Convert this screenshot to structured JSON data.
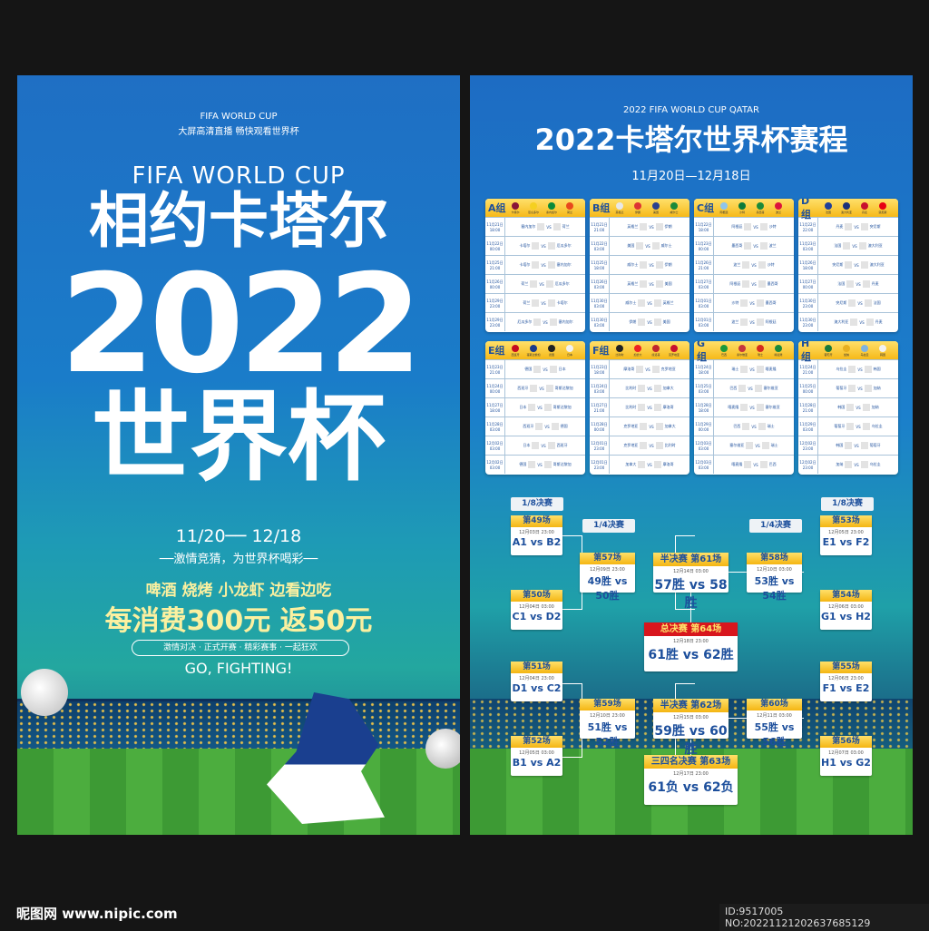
{
  "left_poster": {
    "top_title": "FIFA WORLD CUP",
    "top_subtitle": "大屏高清直播 畅快观看世界杯",
    "fifa": "FIFA WORLD CUP",
    "headline1": "相约卡塔尔",
    "year": "2022",
    "headline2": "世界杯",
    "dates": "11/20── 12/18",
    "tagline": "──激情竞猜，为世界杯喝彩──",
    "food": "啤酒 烧烤 小龙虾 边看边吃",
    "promo": "每消费300元 返50元",
    "pill": "激情对决 · 正式开赛 · 精彩赛事 · 一起狂欢",
    "slogan": "GO, FIGHTING!"
  },
  "right_poster": {
    "subtitle": "2022 FIFA WORLD CUP QATAR",
    "title": "2022卡塔尔世界杯赛程",
    "dates": "11月20日—12月18日",
    "vs": "VS",
    "groups": [
      {
        "name": "A组",
        "teams": [
          "卡塔尔",
          "厄瓜多尔",
          "塞内加尔",
          "荷兰"
        ],
        "colors": [
          "#8a1538",
          "#f5d020",
          "#0a8a3a",
          "#e8491d"
        ],
        "matches": [
          [
            "11月21日",
            "18:00",
            "塞内加尔",
            "荷兰"
          ],
          [
            "11月22日",
            "00:00",
            "卡塔尔",
            "厄瓜多尔"
          ],
          [
            "11月25日",
            "21:00",
            "卡塔尔",
            "塞内加尔"
          ],
          [
            "11月26日",
            "00:00",
            "荷兰",
            "厄瓜多尔"
          ],
          [
            "11月29日",
            "23:00",
            "荷兰",
            "卡塔尔"
          ],
          [
            "11月29日",
            "23:00",
            "厄瓜多尔",
            "塞内加尔"
          ]
        ]
      },
      {
        "name": "B组",
        "teams": [
          "英格兰",
          "伊朗",
          "美国",
          "威尔士"
        ],
        "colors": [
          "#e8e8e8",
          "#d33",
          "#2a3f8f",
          "#1a8a3a"
        ],
        "matches": [
          [
            "11月21日",
            "21:00",
            "英格兰",
            "伊朗"
          ],
          [
            "11月22日",
            "03:00",
            "美国",
            "威尔士"
          ],
          [
            "11月25日",
            "18:00",
            "威尔士",
            "伊朗"
          ],
          [
            "11月26日",
            "03:00",
            "英格兰",
            "美国"
          ],
          [
            "11月30日",
            "03:00",
            "威尔士",
            "英格兰"
          ],
          [
            "11月30日",
            "03:00",
            "伊朗",
            "美国"
          ]
        ]
      },
      {
        "name": "C组",
        "teams": [
          "阿根廷",
          "沙特",
          "墨西哥",
          "波兰"
        ],
        "colors": [
          "#8fc5ea",
          "#0b7a3a",
          "#1a8a3a",
          "#dc143c"
        ],
        "matches": [
          [
            "11月22日",
            "18:00",
            "阿根廷",
            "沙特"
          ],
          [
            "11月23日",
            "00:00",
            "墨西哥",
            "波兰"
          ],
          [
            "11月26日",
            "21:00",
            "波兰",
            "沙特"
          ],
          [
            "11月27日",
            "03:00",
            "阿根廷",
            "墨西哥"
          ],
          [
            "12月01日",
            "03:00",
            "沙特",
            "墨西哥"
          ],
          [
            "12月01日",
            "03:00",
            "波兰",
            "阿根廷"
          ]
        ]
      },
      {
        "name": "D组",
        "teams": [
          "法国",
          "澳大利亚",
          "丹麦",
          "突尼斯"
        ],
        "colors": [
          "#1f3f9a",
          "#1a2f7a",
          "#c8102e",
          "#e70013"
        ],
        "matches": [
          [
            "11月22日",
            "22:00",
            "丹麦",
            "突尼斯"
          ],
          [
            "11月23日",
            "03:00",
            "法国",
            "澳大利亚"
          ],
          [
            "11月26日",
            "18:00",
            "突尼斯",
            "澳大利亚"
          ],
          [
            "11月27日",
            "00:00",
            "法国",
            "丹麦"
          ],
          [
            "11月30日",
            "23:00",
            "突尼斯",
            "法国"
          ],
          [
            "11月30日",
            "23:00",
            "澳大利亚",
            "丹麦"
          ]
        ]
      },
      {
        "name": "E组",
        "teams": [
          "西班牙",
          "哥斯达黎加",
          "德国",
          "日本"
        ],
        "colors": [
          "#c60b1e",
          "#1a3a8a",
          "#222",
          "#f2f2f2"
        ],
        "matches": [
          [
            "11月23日",
            "21:00",
            "德国",
            "日本"
          ],
          [
            "11月24日",
            "00:00",
            "西班牙",
            "哥斯达黎加"
          ],
          [
            "11月27日",
            "18:00",
            "日本",
            "哥斯达黎加"
          ],
          [
            "11月28日",
            "03:00",
            "西班牙",
            "德国"
          ],
          [
            "12月02日",
            "03:00",
            "日本",
            "西班牙"
          ],
          [
            "12月02日",
            "03:00",
            "德国",
            "哥斯达黎加"
          ]
        ]
      },
      {
        "name": "F组",
        "teams": [
          "比利时",
          "加拿大",
          "摩洛哥",
          "克罗地亚"
        ],
        "colors": [
          "#222",
          "#e22",
          "#c1272d",
          "#c8102e"
        ],
        "matches": [
          [
            "11月23日",
            "18:00",
            "摩洛哥",
            "克罗地亚"
          ],
          [
            "11月24日",
            "03:00",
            "比利时",
            "加拿大"
          ],
          [
            "11月27日",
            "21:00",
            "比利时",
            "摩洛哥"
          ],
          [
            "11月28日",
            "00:00",
            "克罗地亚",
            "加拿大"
          ],
          [
            "12月01日",
            "23:00",
            "克罗地亚",
            "比利时"
          ],
          [
            "12月01日",
            "23:00",
            "加拿大",
            "摩洛哥"
          ]
        ]
      },
      {
        "name": "G组",
        "teams": [
          "巴西",
          "塞尔维亚",
          "瑞士",
          "喀麦隆"
        ],
        "colors": [
          "#1a9a3a",
          "#c6363c",
          "#d52b1e",
          "#1a8a3a"
        ],
        "matches": [
          [
            "11月24日",
            "18:00",
            "瑞士",
            "喀麦隆"
          ],
          [
            "11月25日",
            "03:00",
            "巴西",
            "塞尔维亚"
          ],
          [
            "11月28日",
            "18:00",
            "喀麦隆",
            "塞尔维亚"
          ],
          [
            "11月29日",
            "00:00",
            "巴西",
            "瑞士"
          ],
          [
            "12月03日",
            "03:00",
            "塞尔维亚",
            "瑞士"
          ],
          [
            "12月03日",
            "03:00",
            "喀麦隆",
            "巴西"
          ]
        ]
      },
      {
        "name": "H组",
        "teams": [
          "葡萄牙",
          "加纳",
          "乌拉圭",
          "韩国"
        ],
        "colors": [
          "#1a7a3a",
          "#e8b020",
          "#7fb3e0",
          "#f2f2f2"
        ],
        "matches": [
          [
            "11月24日",
            "21:00",
            "乌拉圭",
            "韩国"
          ],
          [
            "11月25日",
            "00:00",
            "葡萄牙",
            "加纳"
          ],
          [
            "11月28日",
            "21:00",
            "韩国",
            "加纳"
          ],
          [
            "11月29日",
            "03:00",
            "葡萄牙",
            "乌拉圭"
          ],
          [
            "12月02日",
            "23:00",
            "韩国",
            "葡萄牙"
          ],
          [
            "12月02日",
            "23:00",
            "加纳",
            "乌拉圭"
          ]
        ]
      }
    ],
    "round_labels": {
      "r16_left": "1/8决赛",
      "r16_right": "1/8决赛",
      "qf_left": "1/4决赛",
      "qf_right": "1/4决赛"
    },
    "knockout": [
      {
        "title": "第49场",
        "date": "12月03日 23:00",
        "match": "A1 vs B2"
      },
      {
        "title": "第50场",
        "date": "12月04日 03:00",
        "match": "C1 vs D2"
      },
      {
        "title": "第51场",
        "date": "12月04日 23:00",
        "match": "D1 vs C2"
      },
      {
        "title": "第52场",
        "date": "12月05日 03:00",
        "match": "B1 vs A2"
      },
      {
        "title": "第57场",
        "date": "12月09日 23:00",
        "match": "49胜 vs 50胜"
      },
      {
        "title": "第59场",
        "date": "12月10日 23:00",
        "match": "51胜 vs 52胜"
      },
      {
        "title": "半决赛 第61场",
        "date": "12月14日 03:00",
        "match": "57胜 vs 58胜"
      },
      {
        "title": "半决赛 第62场",
        "date": "12月15日 03:00",
        "match": "59胜 vs 60胜"
      },
      {
        "title": "总决赛 第64场",
        "date": "12月18日 23:00",
        "match": "61胜 vs 62胜"
      },
      {
        "title": "三四名决赛 第63场",
        "date": "12月17日 23:00",
        "match": "61负 vs 62负"
      },
      {
        "title": "第58场",
        "date": "12月10日 03:00",
        "match": "53胜 vs 54胜"
      },
      {
        "title": "第60场",
        "date": "12月11日 03:00",
        "match": "55胜 vs 56胜"
      },
      {
        "title": "第53场",
        "date": "12月05日 23:00",
        "match": "E1 vs F2"
      },
      {
        "title": "第54场",
        "date": "12月06日 03:00",
        "match": "G1 vs H2"
      },
      {
        "title": "第55场",
        "date": "12月06日 23:00",
        "match": "F1 vs E2"
      },
      {
        "title": "第56场",
        "date": "12月07日 03:00",
        "match": "H1 vs G2"
      }
    ]
  },
  "watermark": {
    "logo": "昵图网 www.nipic.com",
    "id": "ID:9517005 NO:20221121202637685129"
  },
  "colors": {
    "accent_yellow": "#f6c21c",
    "title_blue": "#1d4f9c",
    "final_red": "#d8161d"
  }
}
